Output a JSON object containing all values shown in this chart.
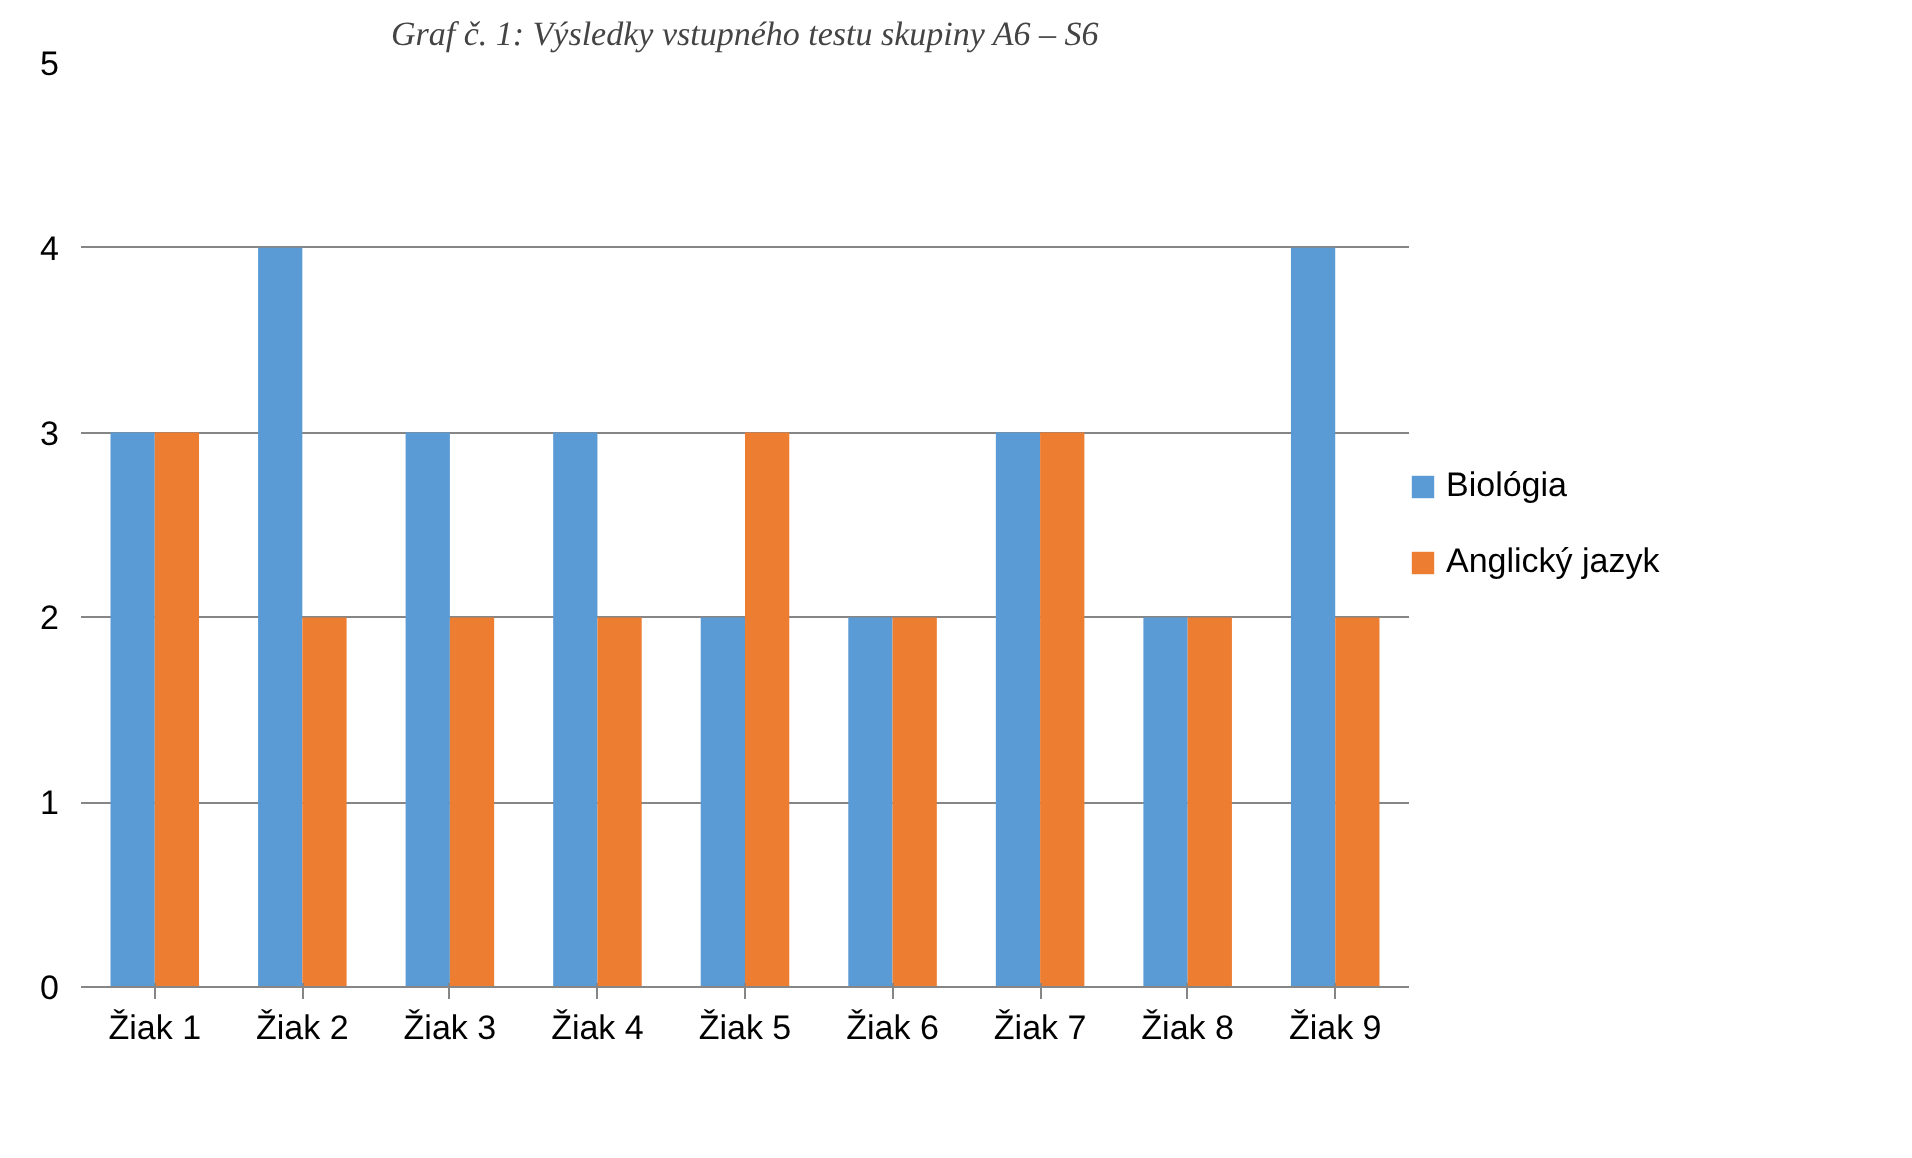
{
  "chart_data": {
    "type": "bar",
    "title": "Graf č. 1: Výsledky vstupného testu skupiny A6 – S6",
    "categories": [
      "Žiak 1",
      "Žiak 2",
      "Žiak 3",
      "Žiak 4",
      "Žiak 5",
      "Žiak 6",
      "Žiak 7",
      "Žiak 8",
      "Žiak 9"
    ],
    "series": [
      {
        "name": "Biológia",
        "color": "#5b9bd5",
        "values": [
          3,
          4,
          3,
          3,
          2,
          2,
          3,
          2,
          4
        ]
      },
      {
        "name": "Anglický jazyk",
        "color": "#ed7d31",
        "values": [
          3,
          2,
          2,
          2,
          3,
          2,
          3,
          2,
          2
        ]
      }
    ],
    "ylim": [
      0,
      5
    ],
    "yticks": [
      0,
      1,
      2,
      3,
      4,
      5
    ],
    "grid": "y",
    "legend": "right"
  }
}
